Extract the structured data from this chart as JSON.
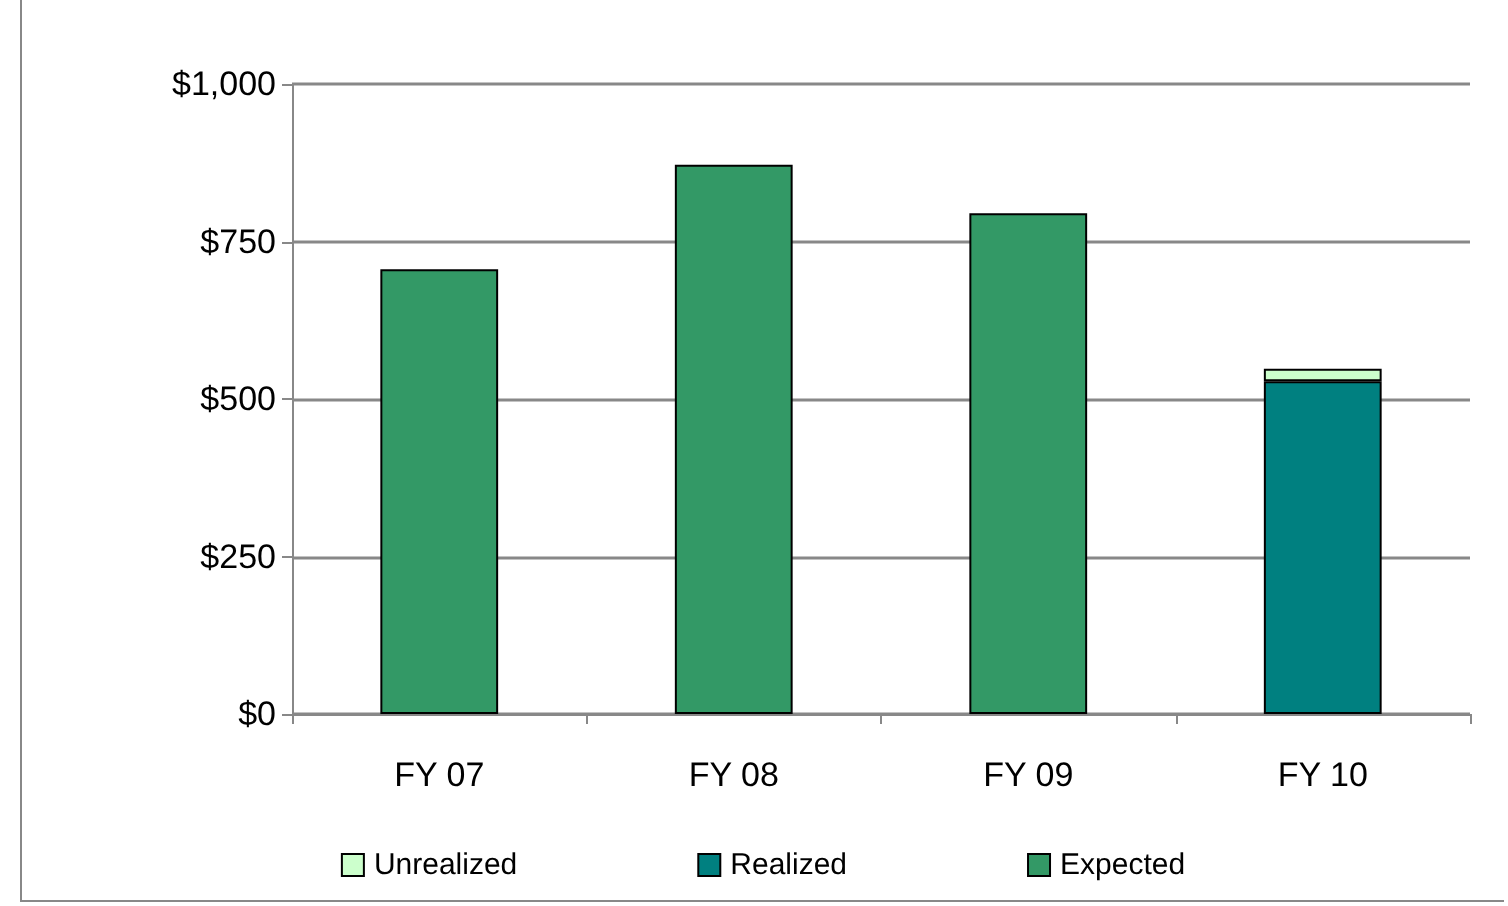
{
  "chart_data": {
    "type": "bar",
    "stacked": true,
    "categories": [
      "FY 07",
      "FY 08",
      "FY 09",
      "FY 10"
    ],
    "series": [
      {
        "name": "Expected",
        "color": "#339966",
        "values": [
          706,
          872,
          795,
          null
        ]
      },
      {
        "name": "Realized",
        "color": "#008080",
        "values": [
          null,
          null,
          null,
          528
        ]
      },
      {
        "name": "Unrealized",
        "color": "#ccffcc",
        "values": [
          null,
          null,
          null,
          20
        ]
      }
    ],
    "ylim": [
      0,
      1000
    ],
    "yticks": [
      {
        "value": 0,
        "label": "$0"
      },
      {
        "value": 250,
        "label": "$250"
      },
      {
        "value": 500,
        "label": "$500"
      },
      {
        "value": 750,
        "label": "$750"
      },
      {
        "value": 1000,
        "label": "$1,000"
      }
    ],
    "grid": "y",
    "legend": "bottom"
  }
}
